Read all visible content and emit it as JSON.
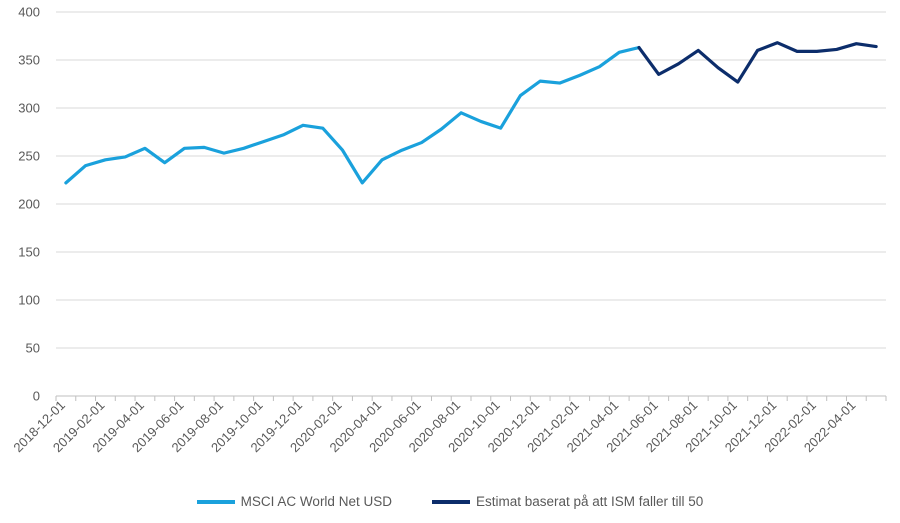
{
  "chart_data": {
    "type": "line",
    "x": [
      "2018-12-01",
      "2019-01-01",
      "2019-02-01",
      "2019-03-01",
      "2019-04-01",
      "2019-05-01",
      "2019-06-01",
      "2019-07-01",
      "2019-08-01",
      "2019-09-01",
      "2019-10-01",
      "2019-11-01",
      "2019-12-01",
      "2020-01-01",
      "2020-02-01",
      "2020-03-01",
      "2020-04-01",
      "2020-05-01",
      "2020-06-01",
      "2020-07-01",
      "2020-08-01",
      "2020-09-01",
      "2020-10-01",
      "2020-11-01",
      "2020-12-01",
      "2021-01-01",
      "2021-02-01",
      "2021-03-01",
      "2021-04-01",
      "2021-05-01",
      "2021-06-01",
      "2021-07-01",
      "2021-08-01",
      "2021-09-01",
      "2021-10-01",
      "2021-11-01",
      "2021-12-01",
      "2022-01-01",
      "2022-02-01",
      "2022-03-01",
      "2022-04-01",
      "2022-05-01"
    ],
    "x_tick_labels": [
      "2018-12-01",
      "2019-02-01",
      "2019-04-01",
      "2019-06-01",
      "2019-08-01",
      "2019-10-01",
      "2019-12-01",
      "2020-02-01",
      "2020-04-01",
      "2020-06-01",
      "2020-08-01",
      "2020-10-01",
      "2020-12-01",
      "2021-02-01",
      "2021-04-01",
      "2021-06-01",
      "2021-08-01",
      "2021-10-01",
      "2021-12-01",
      "2022-02-01",
      "2022-04-01"
    ],
    "y_ticks": [
      0,
      50,
      100,
      150,
      200,
      250,
      300,
      350,
      400
    ],
    "ylim": [
      0,
      400
    ],
    "grid": "horizontal",
    "legend_position": "bottom",
    "series": [
      {
        "name": "MSCI AC World Net USD",
        "color": "#1AA1DC",
        "points": [
          [
            "2018-12-01",
            222
          ],
          [
            "2019-01-01",
            240
          ],
          [
            "2019-02-01",
            246
          ],
          [
            "2019-03-01",
            249
          ],
          [
            "2019-04-01",
            258
          ],
          [
            "2019-05-01",
            243
          ],
          [
            "2019-06-01",
            258
          ],
          [
            "2019-07-01",
            259
          ],
          [
            "2019-08-01",
            253
          ],
          [
            "2019-09-01",
            258
          ],
          [
            "2019-10-01",
            265
          ],
          [
            "2019-11-01",
            272
          ],
          [
            "2019-12-01",
            282
          ],
          [
            "2020-01-01",
            279
          ],
          [
            "2020-02-01",
            256
          ],
          [
            "2020-03-01",
            222
          ],
          [
            "2020-04-01",
            246
          ],
          [
            "2020-05-01",
            256
          ],
          [
            "2020-06-01",
            264
          ],
          [
            "2020-07-01",
            278
          ],
          [
            "2020-08-01",
            295
          ],
          [
            "2020-09-01",
            286
          ],
          [
            "2020-10-01",
            279
          ],
          [
            "2020-11-01",
            313
          ],
          [
            "2020-12-01",
            328
          ],
          [
            "2021-01-01",
            326
          ],
          [
            "2021-02-01",
            334
          ],
          [
            "2021-03-01",
            343
          ],
          [
            "2021-04-01",
            358
          ],
          [
            "2021-05-01",
            363
          ]
        ]
      },
      {
        "name": "Estimat baserat på att ISM faller till 50",
        "color": "#0C2D6B",
        "points": [
          [
            "2021-05-01",
            363
          ],
          [
            "2021-06-01",
            335
          ],
          [
            "2021-07-01",
            346
          ],
          [
            "2021-08-01",
            360
          ],
          [
            "2021-09-01",
            342
          ],
          [
            "2021-10-01",
            327
          ],
          [
            "2021-11-01",
            360
          ],
          [
            "2021-12-01",
            368
          ],
          [
            "2022-01-01",
            359
          ],
          [
            "2022-02-01",
            359
          ],
          [
            "2022-03-01",
            361
          ],
          [
            "2022-04-01",
            367
          ],
          [
            "2022-05-01",
            364
          ]
        ]
      }
    ]
  }
}
